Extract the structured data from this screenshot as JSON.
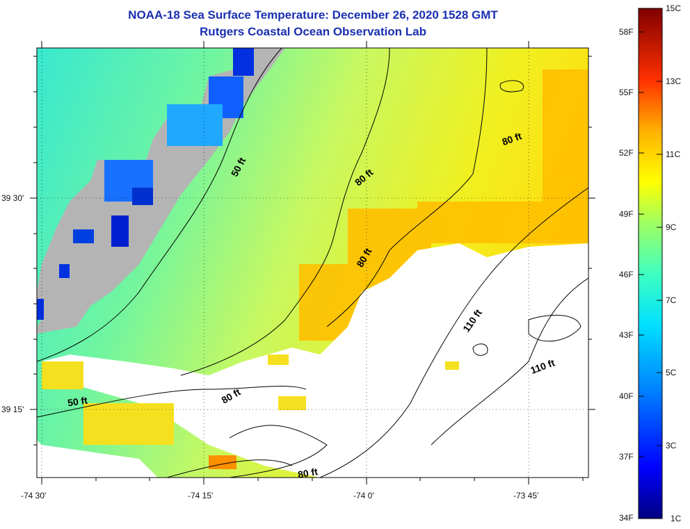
{
  "header": {
    "title": "NOAA-18 Sea Surface Temperature:  December 26, 2020 1528 GMT",
    "subtitle": "Rutgers Coastal Ocean Observation Lab"
  },
  "axes": {
    "lon_ticks": [
      "-74 30'",
      "-74 15'",
      "-74 0'",
      "-73 45'"
    ],
    "lat_ticks": [
      "39 30'",
      "39 15'"
    ]
  },
  "colorbar": {
    "fahrenheit_labels": [
      "58F",
      "55F",
      "52F",
      "49F",
      "46F",
      "43F",
      "40F",
      "37F",
      "34F"
    ],
    "celsius_labels": [
      "15C",
      "13C",
      "11C",
      "9C",
      "7C",
      "5C",
      "3C",
      "1C"
    ],
    "colors": [
      "#00008f",
      "#0000ff",
      "#0060ff",
      "#00c8ff",
      "#40ffbf",
      "#9fff60",
      "#ffff00",
      "#ffbf00",
      "#ff6000",
      "#ff0000",
      "#af0000",
      "#800000"
    ]
  },
  "contours": [
    {
      "label": "50 ft"
    },
    {
      "label": "80 ft"
    },
    {
      "label": "80 ft"
    },
    {
      "label": "80 ft"
    },
    {
      "label": "80 ft"
    },
    {
      "label": "110 ft"
    },
    {
      "label": "110 ft"
    },
    {
      "label": "50 ft"
    },
    {
      "label": "80 ft"
    }
  ],
  "colors": {
    "land": "#b4b4b4",
    "nodata": "#ffffff",
    "title": "#1a2fb0"
  }
}
